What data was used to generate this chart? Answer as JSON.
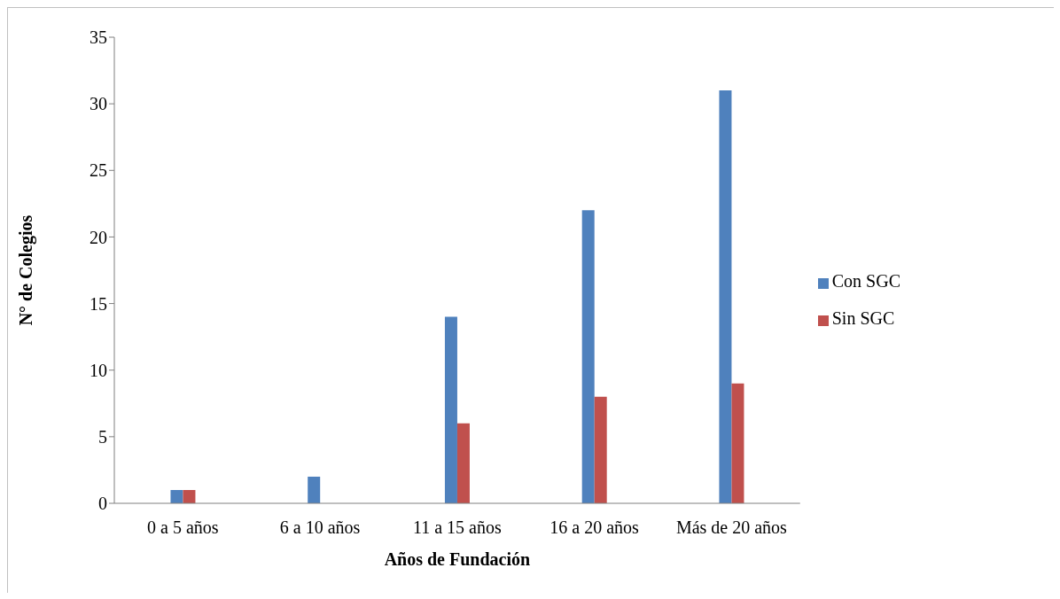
{
  "chart_data": {
    "type": "bar",
    "xlabel": "Años de Fundación",
    "ylabel": "N° de Colegios",
    "categories": [
      "0 a 5 años",
      "6 a 10 años",
      "11 a 15 años",
      "16 a 20 años",
      "Más de 20 años"
    ],
    "series": [
      {
        "name": "Con SGC",
        "color": "#4f81bd",
        "values": [
          1,
          2,
          14,
          22,
          31
        ]
      },
      {
        "name": "Sin SGC",
        "color": "#c0504d",
        "values": [
          1,
          0,
          6,
          8,
          9
        ]
      }
    ],
    "ylim": [
      0,
      35
    ],
    "yticks": [
      0,
      5,
      10,
      15,
      20,
      25,
      30,
      35
    ],
    "grid": false,
    "legend": "right"
  }
}
